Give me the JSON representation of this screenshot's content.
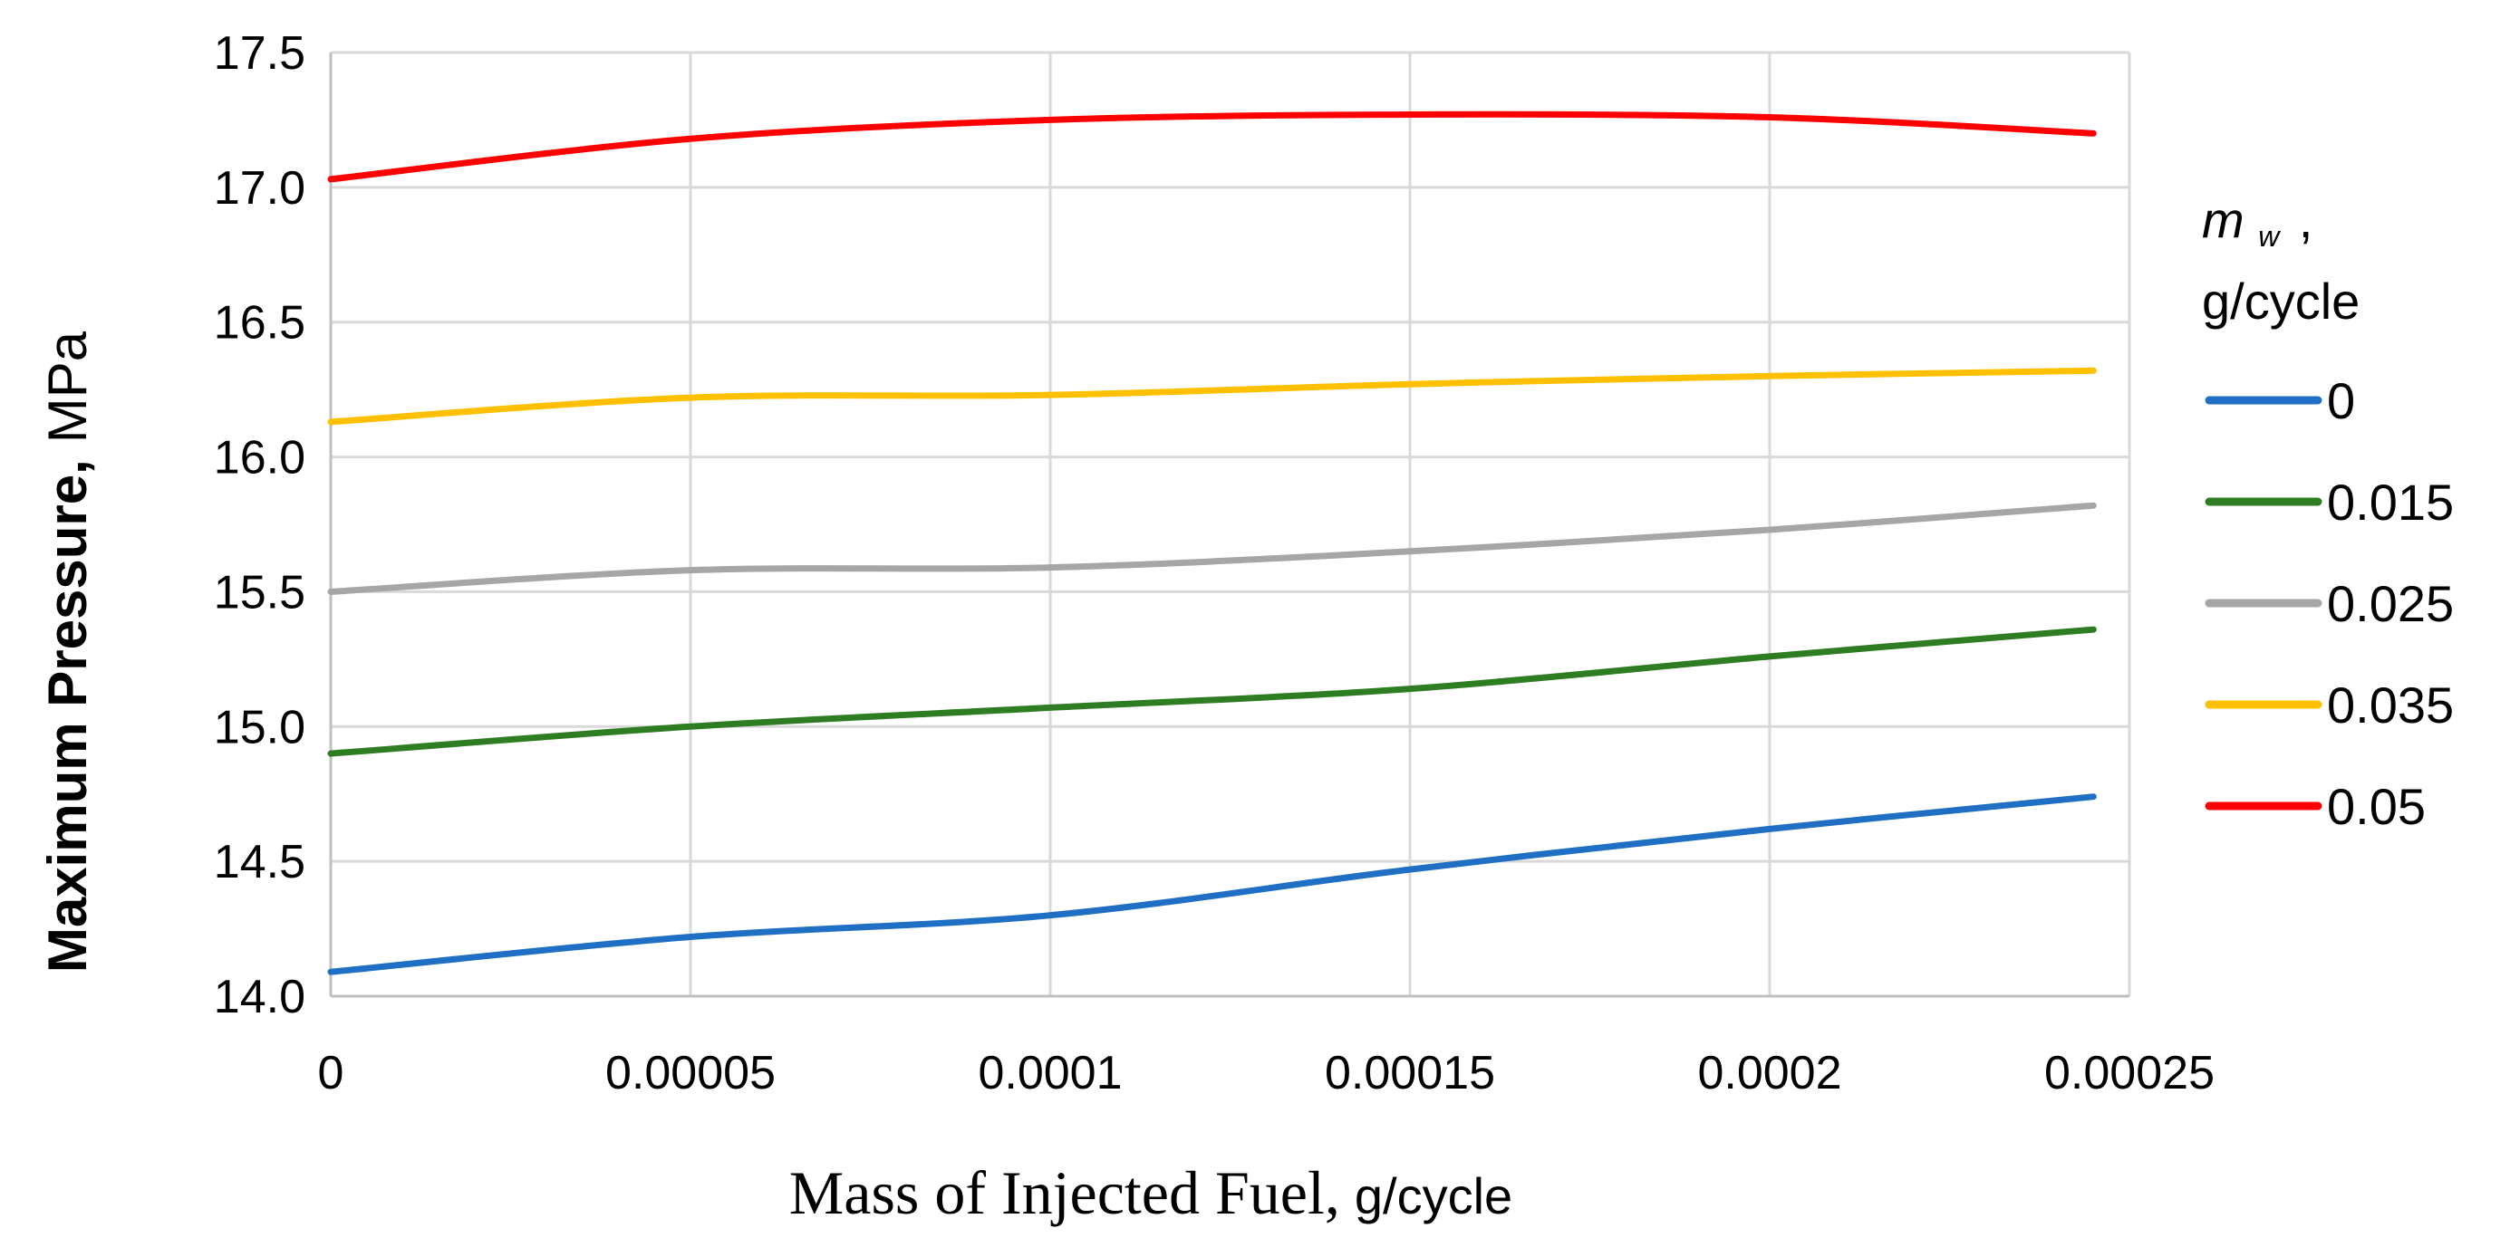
{
  "chart_data": {
    "type": "line",
    "x": [
      0,
      5e-05,
      0.0001,
      0.00015,
      0.0002,
      0.000245
    ],
    "series": [
      {
        "name": "0",
        "color": "#1f6fc5",
        "values": [
          14.09,
          14.22,
          14.3,
          14.47,
          14.62,
          14.74
        ]
      },
      {
        "name": "0.015",
        "color": "#2e7d22",
        "values": [
          14.9,
          15.0,
          15.07,
          15.14,
          15.26,
          15.36
        ]
      },
      {
        "name": "0.025",
        "color": "#a6a6a6",
        "values": [
          15.5,
          15.58,
          15.59,
          15.65,
          15.73,
          15.82
        ]
      },
      {
        "name": "0.035",
        "color": "#ffc000",
        "values": [
          16.13,
          16.22,
          16.23,
          16.27,
          16.3,
          16.32
        ]
      },
      {
        "name": "0.05",
        "color": "#ff0000",
        "values": [
          17.03,
          17.18,
          17.25,
          17.27,
          17.26,
          17.2
        ]
      }
    ],
    "xticks": [
      "0",
      "0.00005",
      "0.0001",
      "0.00015",
      "0.0002",
      "0.00025"
    ],
    "xtick_values": [
      0,
      5e-05,
      0.0001,
      0.00015,
      0.0002,
      0.00025
    ],
    "yticks": [
      "14.0",
      "14.5",
      "15.0",
      "15.5",
      "16.0",
      "16.5",
      "17.0",
      "17.5"
    ],
    "ytick_values": [
      14.0,
      14.5,
      15.0,
      15.5,
      16.0,
      16.5,
      17.0,
      17.5
    ],
    "xlim": [
      0,
      0.00025
    ],
    "ylim": [
      14.0,
      17.5
    ],
    "xlabel_main": "Mass of Injected Fuel,",
    "xlabel_unit": "g/cycle",
    "ylabel_main": "Maximum Pressure,",
    "ylabel_unit": "MPa",
    "legend_title_symbol": "m",
    "legend_title_sub": "w",
    "legend_title_comma": ",",
    "legend_title_unit": "g/cycle",
    "grid": true,
    "legend_position": "right"
  }
}
